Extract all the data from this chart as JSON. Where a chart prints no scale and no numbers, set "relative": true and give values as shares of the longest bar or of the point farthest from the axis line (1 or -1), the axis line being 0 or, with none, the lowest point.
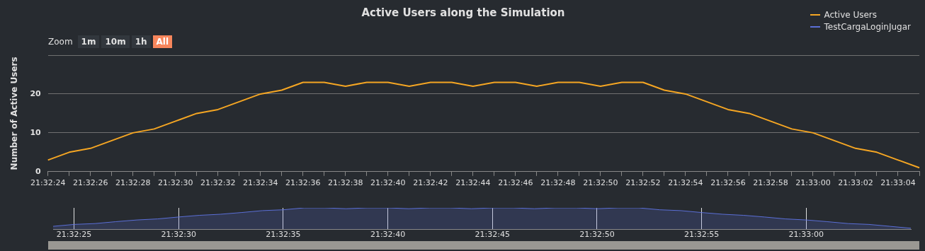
{
  "chart_data": [
    {
      "type": "line",
      "title": "Active Users along the Simulation",
      "ylabel": "Number of Active Users",
      "categories": [
        "21:32:24",
        null,
        "21:32:26",
        null,
        "21:32:28",
        null,
        "21:32:30",
        null,
        "21:32:32",
        null,
        "21:32:34",
        null,
        "21:32:36",
        null,
        "21:32:38",
        null,
        "21:32:40",
        null,
        "21:32:42",
        null,
        "21:32:44",
        null,
        "21:32:46",
        null,
        "21:32:48",
        null,
        "21:32:50",
        null,
        "21:32:52",
        null,
        "21:32:54",
        null,
        "21:32:56",
        null,
        "21:32:58",
        null,
        "21:33:00",
        null,
        "21:33:02",
        null,
        "21:33:04",
        null
      ],
      "series": [
        {
          "name": "Active Users",
          "color": "#f5a623",
          "values": [
            3,
            5,
            6,
            8,
            10,
            11,
            13,
            15,
            16,
            18,
            20,
            21,
            23,
            23,
            22,
            23,
            23,
            22,
            23,
            23,
            22,
            23,
            23,
            22,
            23,
            23,
            22,
            23,
            23,
            21,
            20,
            18,
            16,
            15,
            13,
            11,
            10,
            8,
            6,
            5,
            3,
            1
          ]
        }
      ],
      "ylim": [
        0,
        30
      ],
      "yticks": [
        0,
        10,
        20,
        {
          "value": 30,
          "label": null
        }
      ],
      "grid": "y",
      "legend": "top right",
      "marker": "none",
      "line_style": "solid",
      "annotations": [
        "Zoom",
        "1m",
        "10m",
        "1h",
        "All"
      ]
    },
    {
      "type": "area",
      "relative": true,
      "categories": [
        null,
        "21:32:25",
        null,
        null,
        null,
        null,
        "21:32:30",
        null,
        null,
        null,
        null,
        "21:32:35",
        null,
        null,
        null,
        null,
        "21:32:40",
        null,
        null,
        null,
        null,
        "21:32:45",
        null,
        null,
        null,
        null,
        "21:32:50",
        null,
        null,
        null,
        null,
        "21:32:55",
        null,
        null,
        null,
        null,
        "21:33:00",
        null,
        null,
        null,
        null,
        null
      ],
      "series": [
        {
          "name": "TestCargaLoginJugar",
          "color": "#5b6fd6",
          "values": [
            0.13,
            0.22,
            0.26,
            0.35,
            0.43,
            0.48,
            0.57,
            0.65,
            0.7,
            0.78,
            0.87,
            0.91,
            1,
            1,
            0.96,
            1,
            1,
            0.96,
            1,
            1,
            0.96,
            1,
            1,
            0.96,
            1,
            1,
            0.96,
            1,
            1,
            0.91,
            0.87,
            0.78,
            0.7,
            0.65,
            0.57,
            0.48,
            0.43,
            0.35,
            0.26,
            0.22,
            0.13,
            0.04
          ]
        }
      ],
      "grid": "x",
      "legend": "top right"
    }
  ]
}
